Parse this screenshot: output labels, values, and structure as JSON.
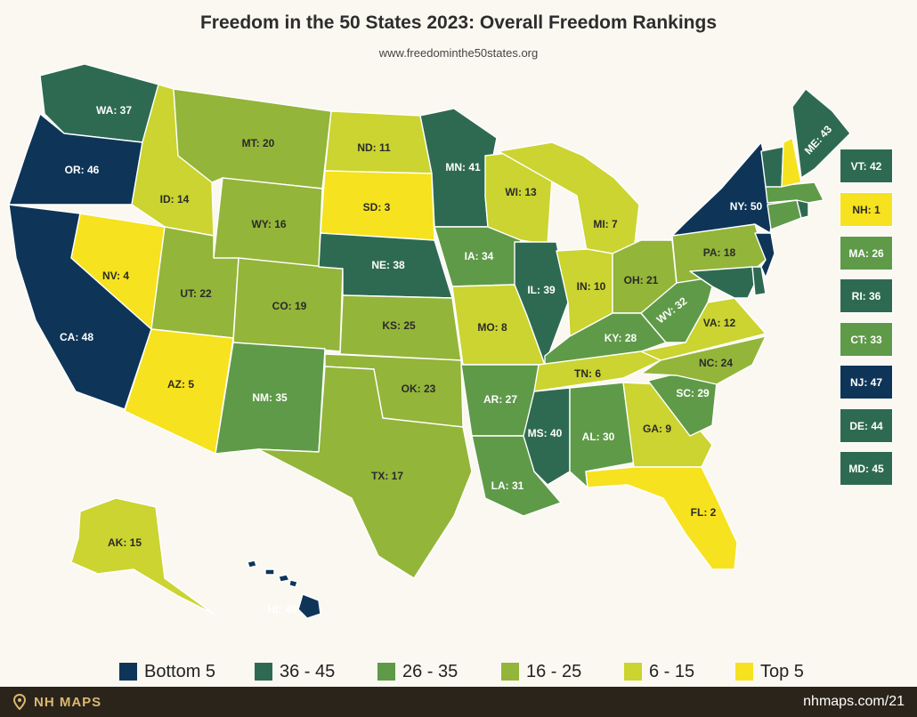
{
  "title": "Freedom in the 50 States 2023: Overall Freedom Rankings",
  "subtitle": "www.freedominthe50states.org",
  "colors": {
    "bottom5": "#0e3558",
    "r36_45": "#2e6a52",
    "r26_35": "#5f9a48",
    "r16_25": "#93b53a",
    "r6_15": "#cbd430",
    "top5": "#f6e21e"
  },
  "legend": [
    {
      "label": "Bottom 5",
      "color": "#0e3558"
    },
    {
      "label": "36 - 45",
      "color": "#2e6a52"
    },
    {
      "label": "26 - 35",
      "color": "#5f9a48"
    },
    {
      "label": "16 - 25",
      "color": "#93b53a"
    },
    {
      "label": "6 - 15",
      "color": "#cbd430"
    },
    {
      "label": "Top 5",
      "color": "#f6e21e"
    }
  ],
  "states": [
    {
      "abbr": "WA",
      "rank": 37,
      "label": "WA: 37"
    },
    {
      "abbr": "OR",
      "rank": 46,
      "label": "OR: 46"
    },
    {
      "abbr": "CA",
      "rank": 48,
      "label": "CA: 48"
    },
    {
      "abbr": "NV",
      "rank": 4,
      "label": "NV: 4"
    },
    {
      "abbr": "ID",
      "rank": 14,
      "label": "ID: 14"
    },
    {
      "abbr": "MT",
      "rank": 20,
      "label": "MT: 20"
    },
    {
      "abbr": "WY",
      "rank": 16,
      "label": "WY: 16"
    },
    {
      "abbr": "UT",
      "rank": 22,
      "label": "UT: 22"
    },
    {
      "abbr": "AZ",
      "rank": 5,
      "label": "AZ: 5"
    },
    {
      "abbr": "CO",
      "rank": 19,
      "label": "CO: 19"
    },
    {
      "abbr": "NM",
      "rank": 35,
      "label": "NM: 35"
    },
    {
      "abbr": "ND",
      "rank": 11,
      "label": "ND: 11"
    },
    {
      "abbr": "SD",
      "rank": 3,
      "label": "SD: 3"
    },
    {
      "abbr": "NE",
      "rank": 38,
      "label": "NE: 38"
    },
    {
      "abbr": "KS",
      "rank": 25,
      "label": "KS: 25"
    },
    {
      "abbr": "OK",
      "rank": 23,
      "label": "OK: 23"
    },
    {
      "abbr": "TX",
      "rank": 17,
      "label": "TX: 17"
    },
    {
      "abbr": "MN",
      "rank": 41,
      "label": "MN: 41"
    },
    {
      "abbr": "IA",
      "rank": 34,
      "label": "IA: 34"
    },
    {
      "abbr": "MO",
      "rank": 8,
      "label": "MO: 8"
    },
    {
      "abbr": "AR",
      "rank": 27,
      "label": "AR: 27"
    },
    {
      "abbr": "LA",
      "rank": 31,
      "label": "LA: 31"
    },
    {
      "abbr": "WI",
      "rank": 13,
      "label": "WI: 13"
    },
    {
      "abbr": "IL",
      "rank": 39,
      "label": "IL: 39"
    },
    {
      "abbr": "MI",
      "rank": 7,
      "label": "MI: 7"
    },
    {
      "abbr": "IN",
      "rank": 10,
      "label": "IN: 10"
    },
    {
      "abbr": "OH",
      "rank": 21,
      "label": "OH: 21"
    },
    {
      "abbr": "KY",
      "rank": 28,
      "label": "KY: 28"
    },
    {
      "abbr": "TN",
      "rank": 6,
      "label": "TN: 6"
    },
    {
      "abbr": "MS",
      "rank": 40,
      "label": "MS: 40"
    },
    {
      "abbr": "AL",
      "rank": 30,
      "label": "AL: 30"
    },
    {
      "abbr": "GA",
      "rank": 9,
      "label": "GA: 9"
    },
    {
      "abbr": "FL",
      "rank": 2,
      "label": "FL: 2"
    },
    {
      "abbr": "SC",
      "rank": 29,
      "label": "SC: 29"
    },
    {
      "abbr": "NC",
      "rank": 24,
      "label": "NC: 24"
    },
    {
      "abbr": "VA",
      "rank": 12,
      "label": "VA: 12"
    },
    {
      "abbr": "WV",
      "rank": 32,
      "label": "WV: 32"
    },
    {
      "abbr": "PA",
      "rank": 18,
      "label": "PA: 18"
    },
    {
      "abbr": "NY",
      "rank": 50,
      "label": "NY: 50"
    },
    {
      "abbr": "ME",
      "rank": 43,
      "label": "ME: 43"
    },
    {
      "abbr": "AK",
      "rank": 15,
      "label": "AK: 15"
    },
    {
      "abbr": "HI",
      "rank": 49,
      "label": "HI: 49"
    },
    {
      "abbr": "VT",
      "rank": 42,
      "label": "VT: 42"
    },
    {
      "abbr": "NH",
      "rank": 1,
      "label": "NH: 1"
    },
    {
      "abbr": "MA",
      "rank": 26,
      "label": "MA: 26"
    },
    {
      "abbr": "RI",
      "rank": 36,
      "label": "RI: 36"
    },
    {
      "abbr": "CT",
      "rank": 33,
      "label": "CT: 33"
    },
    {
      "abbr": "NJ",
      "rank": 47,
      "label": "NJ: 47"
    },
    {
      "abbr": "DE",
      "rank": 44,
      "label": "DE: 44"
    },
    {
      "abbr": "MD",
      "rank": 45,
      "label": "MD: 45"
    }
  ],
  "side_boxes": [
    "VT",
    "NH",
    "MA",
    "RI",
    "CT",
    "NJ",
    "DE",
    "MD"
  ],
  "footer": {
    "brand": "NH MAPS",
    "pin_icon": "map-pin-icon",
    "credit": "nhmaps.com/21"
  }
}
